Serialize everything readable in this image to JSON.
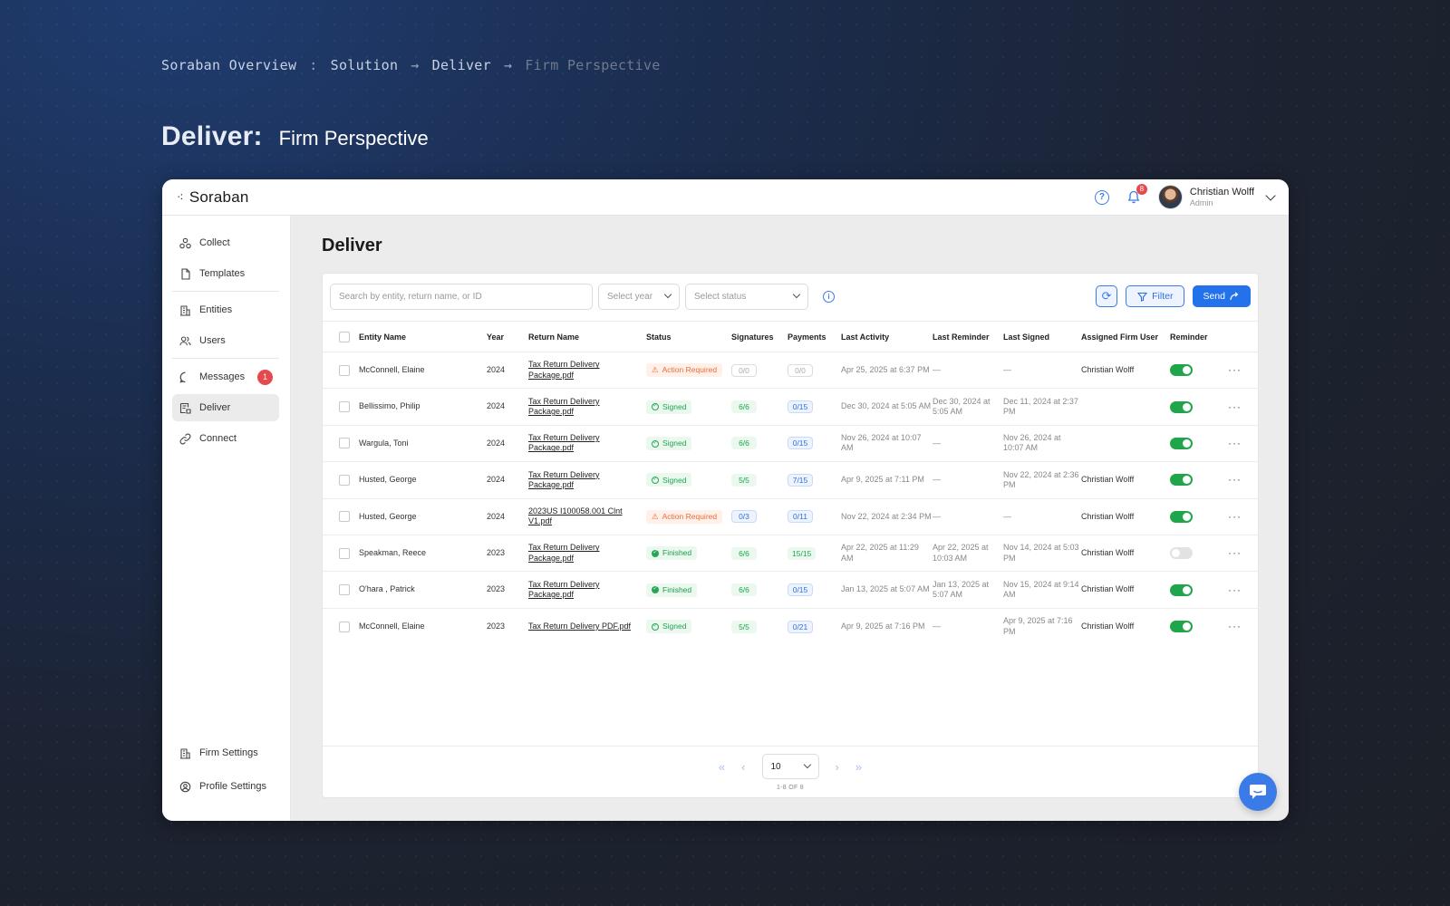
{
  "breadcrumb": {
    "items": [
      "Soraban Overview",
      "Solution",
      "Deliver",
      "Firm Perspective"
    ],
    "separators": [
      ":",
      "→",
      "→"
    ]
  },
  "hero": {
    "bold": "Deliver:",
    "light": "Firm Perspective"
  },
  "app": {
    "logo": "Soraban",
    "notifications_count": "8",
    "user": {
      "name": "Christian Wolff",
      "role": "Admin"
    }
  },
  "sidebar": {
    "items": [
      {
        "label": "Collect",
        "icon": "collect-icon"
      },
      {
        "label": "Templates",
        "icon": "file-icon"
      },
      {
        "label": "Entities",
        "icon": "building-icon"
      },
      {
        "label": "Users",
        "icon": "users-icon"
      },
      {
        "label": "Messages",
        "icon": "message-icon",
        "badge": "1"
      },
      {
        "label": "Deliver",
        "icon": "deliver-icon",
        "active": true
      },
      {
        "label": "Connect",
        "icon": "link-icon"
      }
    ],
    "bottom": [
      {
        "label": "Firm Settings",
        "icon": "building-icon"
      },
      {
        "label": "Profile Settings",
        "icon": "profile-settings-icon"
      }
    ]
  },
  "main": {
    "title": "Deliver",
    "search_placeholder": "Search by entity, return name, or ID",
    "year_placeholder": "Select year",
    "status_placeholder": "Select status",
    "filter_label": "Filter",
    "send_label": "Send",
    "columns": [
      "Entity Name",
      "Year",
      "Return Name",
      "Status",
      "Signatures",
      "Payments",
      "Last Activity",
      "Last Reminder",
      "Last Signed",
      "Assigned Firm User",
      "Reminder"
    ],
    "rows": [
      {
        "entity": "McConnell, Elaine",
        "year": "2024",
        "return_name": "Tax Return Delivery Package.pdf",
        "status": "Action Required",
        "signatures": "0/0",
        "payments": "0/0",
        "last_activity": "Apr 25, 2025 at 6:37 PM",
        "last_reminder": "—",
        "last_signed": "—",
        "assigned": "Christian Wolff",
        "reminder": true
      },
      {
        "entity": "Bellissimo, Philip",
        "year": "2024",
        "return_name": "Tax Return Delivery Package.pdf",
        "status": "Signed",
        "signatures": "6/6",
        "payments": "0/15",
        "last_activity": "Dec 30, 2024 at 5:05 AM",
        "last_reminder": "Dec 30, 2024 at 5:05 AM",
        "last_signed": "Dec 11, 2024 at 2:37 PM",
        "assigned": "",
        "reminder": true
      },
      {
        "entity": "Wargula, Toni",
        "year": "2024",
        "return_name": "Tax Return Delivery Package.pdf",
        "status": "Signed",
        "signatures": "6/6",
        "payments": "0/15",
        "last_activity": "Nov 26, 2024 at 10:07 AM",
        "last_reminder": "—",
        "last_signed": "Nov 26, 2024 at 10:07 AM",
        "assigned": "",
        "reminder": true
      },
      {
        "entity": "Husted, George",
        "year": "2024",
        "return_name": "Tax Return Delivery Package.pdf",
        "status": "Signed",
        "signatures": "5/5",
        "payments": "7/15",
        "last_activity": "Apr 9, 2025 at 7:11 PM",
        "last_reminder": "—",
        "last_signed": "Nov 22, 2024 at 2:36 PM",
        "assigned": "Christian Wolff",
        "reminder": true
      },
      {
        "entity": "Husted, George",
        "year": "2024",
        "return_name": "2023US I100058.001 Clnt V1.pdf",
        "status": "Action Required",
        "signatures": "0/3",
        "payments": "0/11",
        "last_activity": "Nov 22, 2024 at 2:34 PM",
        "last_reminder": "—",
        "last_signed": "—",
        "assigned": "Christian Wolff",
        "reminder": true
      },
      {
        "entity": "Speakman, Reece",
        "year": "2023",
        "return_name": "Tax Return Delivery Package.pdf",
        "status": "Finished",
        "signatures": "6/6",
        "payments": "15/15",
        "last_activity": "Apr 22, 2025 at 11:29 AM",
        "last_reminder": "Apr 22, 2025 at 10:03 AM",
        "last_signed": "Nov 14, 2024 at 5:03 PM",
        "assigned": "Christian Wolff",
        "reminder": false
      },
      {
        "entity": "O'hara , Patrick",
        "year": "2023",
        "return_name": "Tax Return Delivery Package.pdf",
        "status": "Finished",
        "signatures": "6/6",
        "payments": "0/15",
        "last_activity": "Jan 13, 2025 at 5:07 AM",
        "last_reminder": "Jan 13, 2025 at 5:07 AM",
        "last_signed": "Nov 15, 2024 at 9:14 AM",
        "assigned": "Christian Wolff",
        "reminder": true
      },
      {
        "entity": "McConnell, Elaine",
        "year": "2023",
        "return_name": "Tax Return Delivery PDF.pdf",
        "status": "Signed",
        "signatures": "5/5",
        "payments": "0/21",
        "last_activity": "Apr 9, 2025 at 7:16 PM",
        "last_reminder": "—",
        "last_signed": "Apr 9, 2025 at 7:16 PM",
        "assigned": "Christian Wolff",
        "reminder": true
      }
    ],
    "pagination": {
      "page_size": "10",
      "count_label": "1-8 OF 8"
    }
  },
  "colors": {
    "accent": "#2372eb",
    "success": "#1fa64a",
    "warning": "#ea6b35",
    "danger": "#e5484d"
  }
}
